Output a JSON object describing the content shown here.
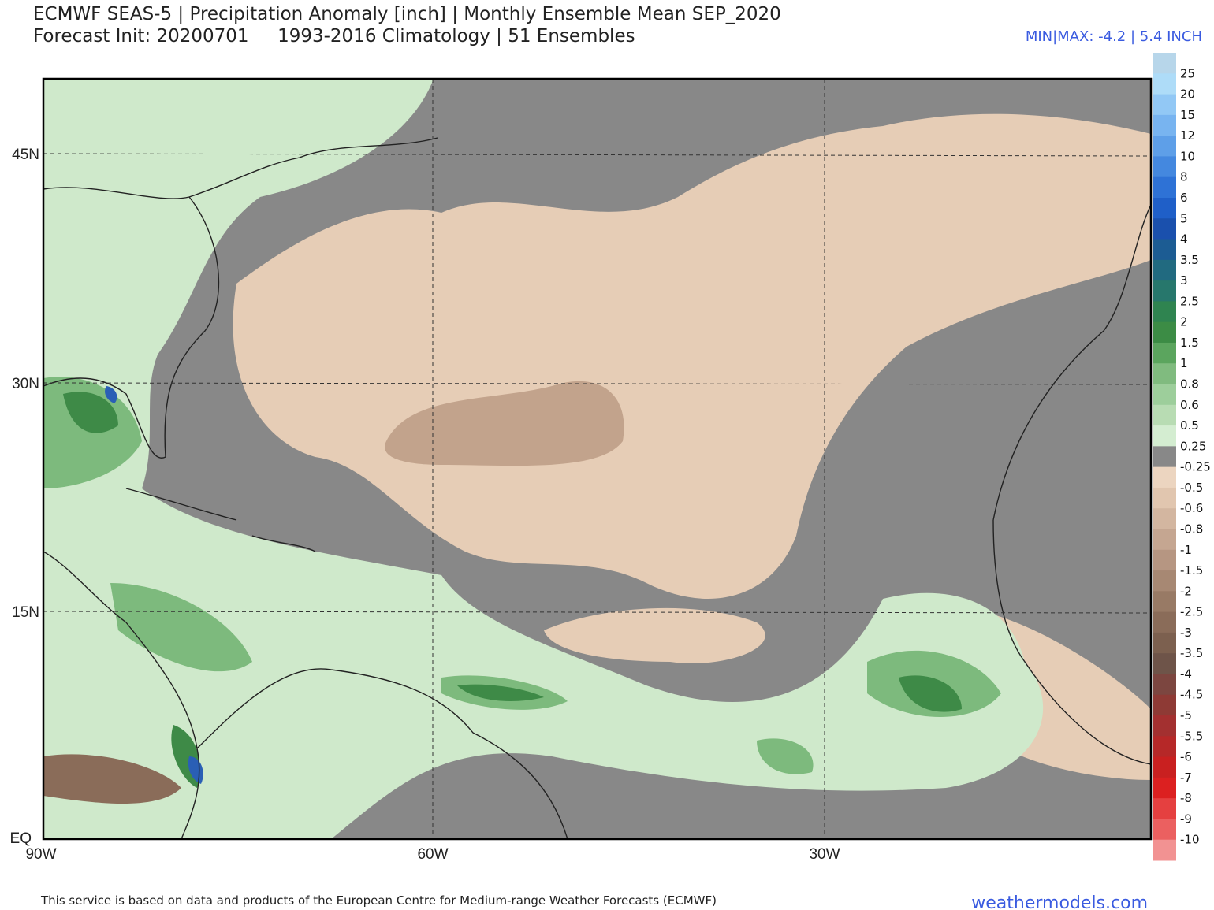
{
  "header": {
    "title": "ECMWF SEAS-5 | Precipitation Anomaly [inch] | Monthly Ensemble Mean SEP_2020",
    "subtitle": "Forecast Init: 20200701     1993-2016 Climatology | 51 Ensembles",
    "minmax": "MIN|MAX: -4.2 | 5.4 INCH"
  },
  "map": {
    "lat_labels": [
      "45N",
      "30N",
      "15N",
      "EQ"
    ],
    "lon_labels": [
      "90W",
      "60W",
      "30W"
    ]
  },
  "legend": {
    "levels": [
      "25",
      "20",
      "15",
      "12",
      "10",
      "8",
      "6",
      "5",
      "4",
      "3.5",
      "3",
      "2.5",
      "2",
      "1.5",
      "1",
      "0.8",
      "0.6",
      "0.5",
      "0.25",
      "-0.25",
      "-0.5",
      "-0.6",
      "-0.8",
      "-1",
      "-1.5",
      "-2",
      "-2.5",
      "-3",
      "-3.5",
      "-4",
      "-4.5",
      "-5",
      "-5.5",
      "-6",
      "-7",
      "-8",
      "-9",
      "-10"
    ],
    "colors": [
      "#b7d6ea",
      "#aedcf8",
      "#92c8f5",
      "#78b4f0",
      "#5e9fe8",
      "#4488df",
      "#2e72d6",
      "#1f5fc8",
      "#1a50ad",
      "#1c5c93",
      "#216a80",
      "#27776c",
      "#2f8450",
      "#3c8c45",
      "#5ba55e",
      "#80bb7f",
      "#9dce9b",
      "#b8dcb3",
      "#d4edd1",
      "#888888",
      "#ecd5c0",
      "#e1c6af",
      "#d3b6a0",
      "#c5a691",
      "#b69682",
      "#a78873",
      "#987a65",
      "#8a6c59",
      "#7c604f",
      "#6e5449",
      "#7c4640",
      "#8e3a35",
      "#a33030",
      "#b62828",
      "#c92020",
      "#dc2020",
      "#e54040",
      "#eb6060",
      "#f29292"
    ]
  },
  "footer": {
    "credit": "This service is based on data and products of the European Centre for Medium-range Weather Forecasts (ECMWF)",
    "site": "weathermodels.com"
  }
}
